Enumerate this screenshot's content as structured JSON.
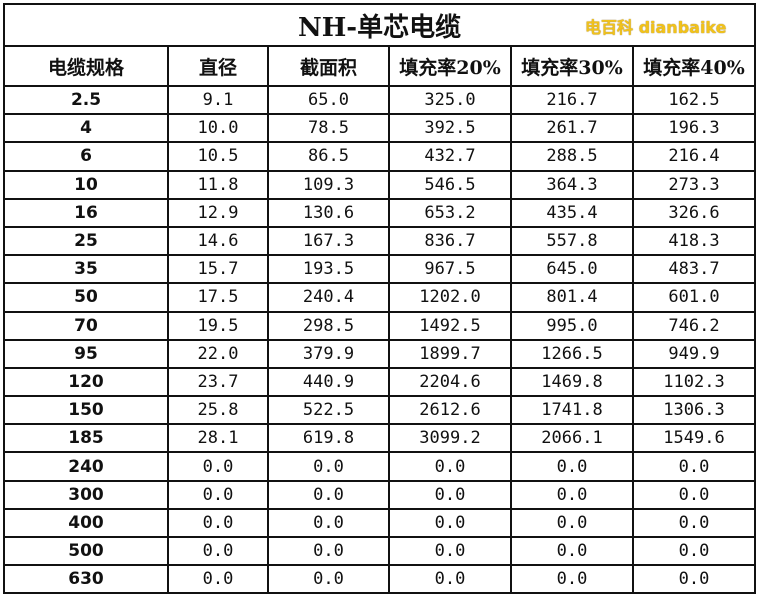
{
  "title": "NH-单芯电缆",
  "headers": [
    "电缆规格",
    "直径",
    "截面积",
    "填充率20%",
    "填充率30%",
    "填充率40%"
  ],
  "rows": [
    [
      "2.5",
      "9.1",
      "65.0",
      "325.0",
      "216.7",
      "162.5"
    ],
    [
      "4",
      "10.0",
      "78.5",
      "392.5",
      "261.7",
      "196.3"
    ],
    [
      "6",
      "10.5",
      "86.5",
      "432.7",
      "288.5",
      "216.4"
    ],
    [
      "10",
      "11.8",
      "109.3",
      "546.5",
      "364.3",
      "273.3"
    ],
    [
      "16",
      "12.9",
      "130.6",
      "653.2",
      "435.4",
      "326.6"
    ],
    [
      "25",
      "14.6",
      "167.3",
      "836.7",
      "557.8",
      "418.3"
    ],
    [
      "35",
      "15.7",
      "193.5",
      "967.5",
      "645.0",
      "483.7"
    ],
    [
      "50",
      "17.5",
      "240.4",
      "1202.0",
      "801.4",
      "601.0"
    ],
    [
      "70",
      "19.5",
      "298.5",
      "1492.5",
      "995.0",
      "746.2"
    ],
    [
      "95",
      "22.0",
      "379.9",
      "1899.7",
      "1266.5",
      "949.9"
    ],
    [
      "120",
      "23.7",
      "440.9",
      "2204.6",
      "1469.8",
      "1102.3"
    ],
    [
      "150",
      "25.8",
      "522.5",
      "2612.6",
      "1741.8",
      "1306.3"
    ],
    [
      "185",
      "28.1",
      "619.8",
      "3099.2",
      "2066.1",
      "1549.6"
    ],
    [
      "240",
      "0.0",
      "0.0",
      "0.0",
      "0.0",
      "0.0"
    ],
    [
      "300",
      "0.0",
      "0.0",
      "0.0",
      "0.0",
      "0.0"
    ],
    [
      "400",
      "0.0",
      "0.0",
      "0.0",
      "0.0",
      "0.0"
    ],
    [
      "500",
      "0.0",
      "0.0",
      "0.0",
      "0.0",
      "0.0"
    ],
    [
      "630",
      "0.0",
      "0.0",
      "0.0",
      "0.0",
      "0.0"
    ]
  ],
  "watermark": "电百科 dianbaike"
}
